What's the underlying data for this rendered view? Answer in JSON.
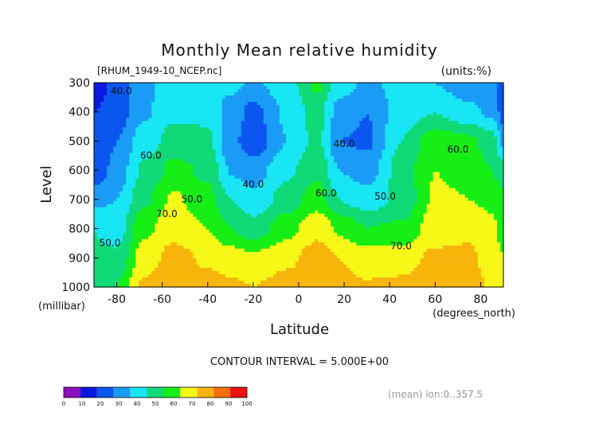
{
  "chart_data": {
    "type": "contour",
    "title": "Monthly Mean relative humidity",
    "subtitle_left": "[RHUM_1949-10_NCEP.nc]",
    "subtitle_right": "(units:%)",
    "xlabel": "Latitude",
    "xunits": "(degrees_north)",
    "ylabel": "Level",
    "yunits": "(millibar)",
    "xlim": [
      -90,
      90
    ],
    "ylim": [
      1000,
      300
    ],
    "x_ticks": [
      -80,
      -60,
      -40,
      -20,
      0,
      20,
      40,
      60,
      80
    ],
    "y_ticks": [
      300,
      400,
      500,
      600,
      700,
      800,
      900,
      1000
    ],
    "contour_interval_text": "CONTOUR INTERVAL = 5.000E+00",
    "footer_right": "(mean) lon:0..357.5",
    "contour_labels": [
      {
        "text": "40.0",
        "x": -78,
        "y": 340
      },
      {
        "text": "40.0",
        "x": -20,
        "y": 660
      },
      {
        "text": "40.0",
        "x": 20,
        "y": 520
      },
      {
        "text": "50.0",
        "x": -47,
        "y": 710
      },
      {
        "text": "50.0",
        "x": 38,
        "y": 700
      },
      {
        "text": "50.0",
        "x": -83,
        "y": 860
      },
      {
        "text": "60.0",
        "x": -65,
        "y": 560
      },
      {
        "text": "60.0",
        "x": 12,
        "y": 690
      },
      {
        "text": "60.0",
        "x": 70,
        "y": 540
      },
      {
        "text": "70.0",
        "x": -58,
        "y": 760
      },
      {
        "text": "70.0",
        "x": 45,
        "y": 870
      }
    ],
    "colorbar": {
      "bounds": [
        0,
        10,
        20,
        30,
        40,
        50,
        60,
        70,
        80,
        90,
        100
      ],
      "colors": [
        "#8a0fbf",
        "#0a18e0",
        "#0b56ee",
        "#1a9cf6",
        "#19e6f4",
        "#10d978",
        "#17ee17",
        "#f7f718",
        "#f7b50c",
        "#f76e0c",
        "#ee1010"
      ]
    },
    "field_rows": [
      {
        "level": 300,
        "values": [
          {
            "lat": -90,
            "rh": 12
          },
          {
            "lat": -80,
            "rh": 25
          },
          {
            "lat": -68,
            "rh": 38
          },
          {
            "lat": -55,
            "rh": 44
          },
          {
            "lat": -40,
            "rh": 47
          },
          {
            "lat": -30,
            "rh": 43
          },
          {
            "lat": -20,
            "rh": 38
          },
          {
            "lat": -5,
            "rh": 46
          },
          {
            "lat": 8,
            "rh": 62
          },
          {
            "lat": 18,
            "rh": 45
          },
          {
            "lat": 30,
            "rh": 38
          },
          {
            "lat": 45,
            "rh": 43
          },
          {
            "lat": 60,
            "rh": 40
          },
          {
            "lat": 75,
            "rh": 33
          },
          {
            "lat": 85,
            "rh": 40
          },
          {
            "lat": 90,
            "rh": 22
          }
        ]
      },
      {
        "level": 400,
        "values": [
          {
            "lat": -90,
            "rh": 20
          },
          {
            "lat": -80,
            "rh": 25
          },
          {
            "lat": -68,
            "rh": 38
          },
          {
            "lat": -55,
            "rh": 48
          },
          {
            "lat": -40,
            "rh": 48
          },
          {
            "lat": -30,
            "rh": 35
          },
          {
            "lat": -20,
            "rh": 27
          },
          {
            "lat": -5,
            "rh": 42
          },
          {
            "lat": 8,
            "rh": 55
          },
          {
            "lat": 18,
            "rh": 36
          },
          {
            "lat": 30,
            "rh": 30
          },
          {
            "lat": 45,
            "rh": 45
          },
          {
            "lat": 60,
            "rh": 50
          },
          {
            "lat": 75,
            "rh": 42
          },
          {
            "lat": 85,
            "rh": 38
          },
          {
            "lat": 90,
            "rh": 25
          }
        ]
      },
      {
        "level": 500,
        "values": [
          {
            "lat": -90,
            "rh": 20
          },
          {
            "lat": -80,
            "rh": 30
          },
          {
            "lat": -68,
            "rh": 45
          },
          {
            "lat": -55,
            "rh": 54
          },
          {
            "lat": -40,
            "rh": 52
          },
          {
            "lat": -30,
            "rh": 33
          },
          {
            "lat": -20,
            "rh": 24
          },
          {
            "lat": -5,
            "rh": 40
          },
          {
            "lat": 8,
            "rh": 53
          },
          {
            "lat": 18,
            "rh": 30
          },
          {
            "lat": 30,
            "rh": 28
          },
          {
            "lat": 45,
            "rh": 50
          },
          {
            "lat": 60,
            "rh": 66
          },
          {
            "lat": 75,
            "rh": 62
          },
          {
            "lat": 85,
            "rh": 55
          },
          {
            "lat": 90,
            "rh": 38
          }
        ]
      },
      {
        "level": 600,
        "values": [
          {
            "lat": -90,
            "rh": 22
          },
          {
            "lat": -80,
            "rh": 34
          },
          {
            "lat": -68,
            "rh": 52
          },
          {
            "lat": -55,
            "rh": 63
          },
          {
            "lat": -40,
            "rh": 58
          },
          {
            "lat": -30,
            "rh": 39
          },
          {
            "lat": -20,
            "rh": 35
          },
          {
            "lat": -5,
            "rh": 48
          },
          {
            "lat": 8,
            "rh": 58
          },
          {
            "lat": 18,
            "rh": 40
          },
          {
            "lat": 30,
            "rh": 35
          },
          {
            "lat": 45,
            "rh": 55
          },
          {
            "lat": 60,
            "rh": 70
          },
          {
            "lat": 75,
            "rh": 66
          },
          {
            "lat": 85,
            "rh": 60
          },
          {
            "lat": 90,
            "rh": 55
          }
        ]
      },
      {
        "level": 700,
        "values": [
          {
            "lat": -90,
            "rh": 38
          },
          {
            "lat": -80,
            "rh": 40
          },
          {
            "lat": -68,
            "rh": 58
          },
          {
            "lat": -55,
            "rh": 72
          },
          {
            "lat": -40,
            "rh": 63
          },
          {
            "lat": -30,
            "rh": 50
          },
          {
            "lat": -20,
            "rh": 43
          },
          {
            "lat": -5,
            "rh": 55
          },
          {
            "lat": 8,
            "rh": 65
          },
          {
            "lat": 18,
            "rh": 50
          },
          {
            "lat": 30,
            "rh": 45
          },
          {
            "lat": 45,
            "rh": 52
          },
          {
            "lat": 60,
            "rh": 72
          },
          {
            "lat": 75,
            "rh": 70
          },
          {
            "lat": 85,
            "rh": 68
          },
          {
            "lat": 90,
            "rh": 62
          }
        ]
      },
      {
        "level": 800,
        "values": [
          {
            "lat": -90,
            "rh": 50
          },
          {
            "lat": -80,
            "rh": 45
          },
          {
            "lat": -68,
            "rh": 68
          },
          {
            "lat": -55,
            "rh": 76
          },
          {
            "lat": -40,
            "rh": 70
          },
          {
            "lat": -30,
            "rh": 60
          },
          {
            "lat": -20,
            "rh": 55
          },
          {
            "lat": -5,
            "rh": 66
          },
          {
            "lat": 8,
            "rh": 78
          },
          {
            "lat": 18,
            "rh": 68
          },
          {
            "lat": 30,
            "rh": 60
          },
          {
            "lat": 45,
            "rh": 62
          },
          {
            "lat": 60,
            "rh": 75
          },
          {
            "lat": 75,
            "rh": 78
          },
          {
            "lat": 85,
            "rh": 72
          },
          {
            "lat": 90,
            "rh": 66
          }
        ]
      },
      {
        "level": 900,
        "values": [
          {
            "lat": -90,
            "rh": 52
          },
          {
            "lat": -80,
            "rh": 52
          },
          {
            "lat": -68,
            "rh": 75
          },
          {
            "lat": -55,
            "rh": 84
          },
          {
            "lat": -40,
            "rh": 78
          },
          {
            "lat": -30,
            "rh": 75
          },
          {
            "lat": -20,
            "rh": 72
          },
          {
            "lat": -5,
            "rh": 78
          },
          {
            "lat": 8,
            "rh": 84
          },
          {
            "lat": 18,
            "rh": 80
          },
          {
            "lat": 30,
            "rh": 75
          },
          {
            "lat": 45,
            "rh": 76
          },
          {
            "lat": 60,
            "rh": 82
          },
          {
            "lat": 75,
            "rh": 82
          },
          {
            "lat": 85,
            "rh": 75
          },
          {
            "lat": 90,
            "rh": 70
          }
        ]
      },
      {
        "level": 1000,
        "values": [
          {
            "lat": -90,
            "rh": 55
          },
          {
            "lat": -80,
            "rh": 60
          },
          {
            "lat": -68,
            "rh": 82
          },
          {
            "lat": -55,
            "rh": 88
          },
          {
            "lat": -40,
            "rh": 85
          },
          {
            "lat": -30,
            "rh": 82
          },
          {
            "lat": -20,
            "rh": 80
          },
          {
            "lat": -5,
            "rh": 84
          },
          {
            "lat": 8,
            "rh": 88
          },
          {
            "lat": 18,
            "rh": 83
          },
          {
            "lat": 30,
            "rh": 81
          },
          {
            "lat": 45,
            "rh": 82
          },
          {
            "lat": 60,
            "rh": 88
          },
          {
            "lat": 75,
            "rh": 85
          },
          {
            "lat": 85,
            "rh": 78
          },
          {
            "lat": 90,
            "rh": 72
          }
        ]
      }
    ]
  }
}
